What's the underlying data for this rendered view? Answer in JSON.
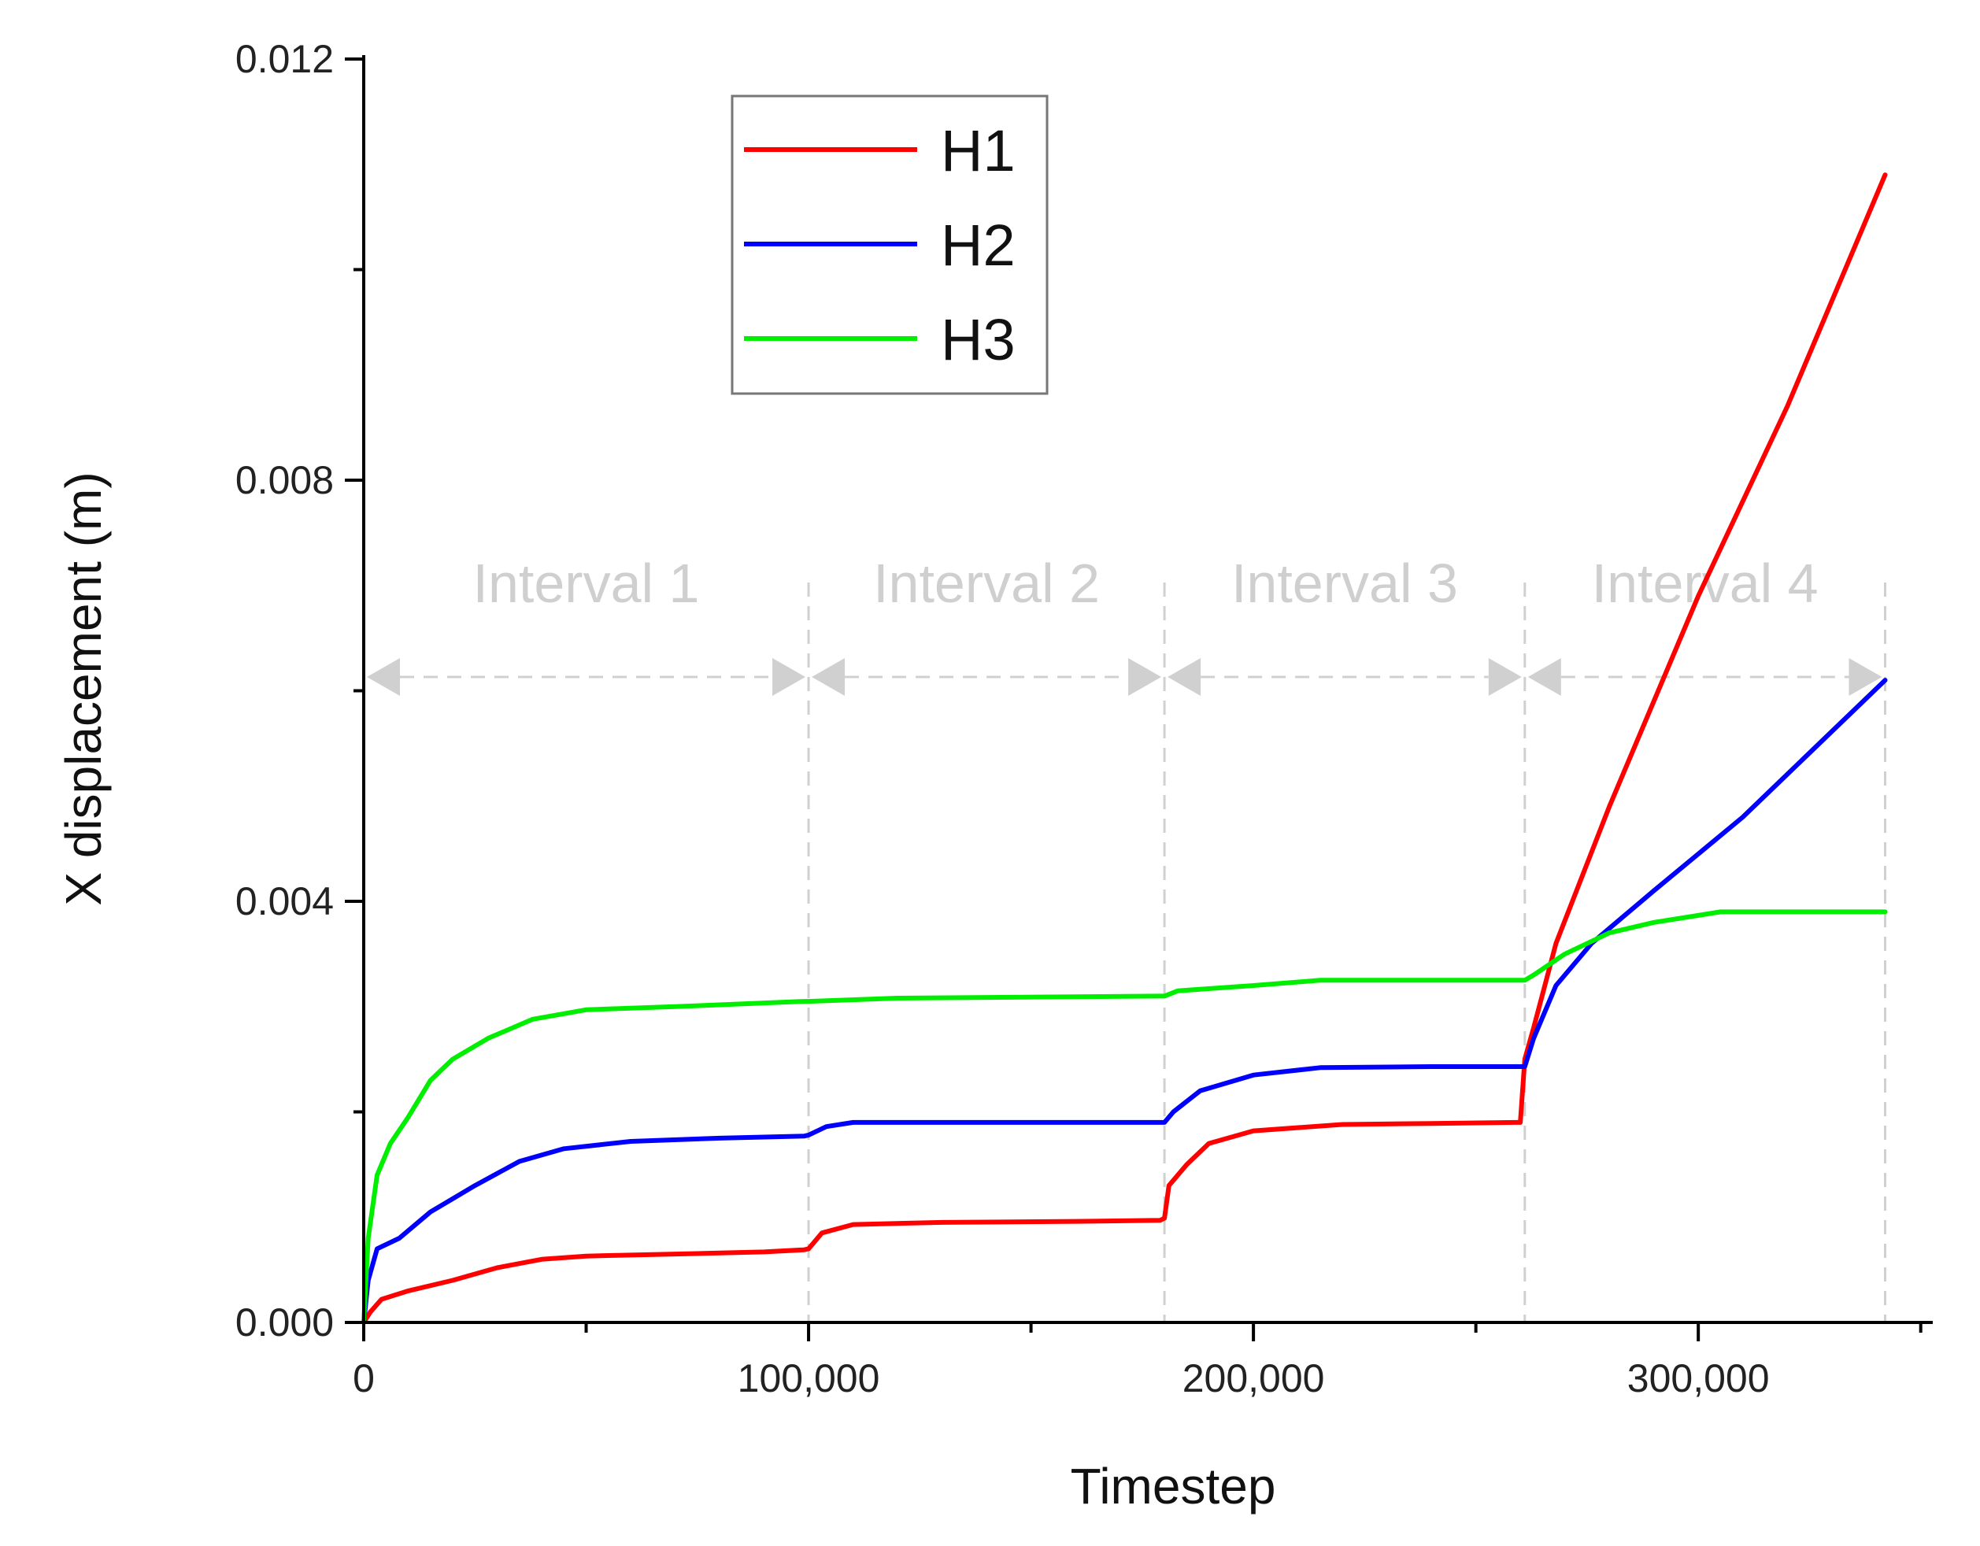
{
  "chart_data": {
    "type": "line",
    "title": "",
    "xlabel": "Timestep",
    "ylabel": "X displacement (m)",
    "xlim": [
      0,
      352000
    ],
    "ylim": [
      0,
      0.012
    ],
    "x_ticks": [
      0,
      100000,
      200000,
      300000
    ],
    "x_tick_labels": [
      "0",
      "100,000",
      "200,000",
      "300,000"
    ],
    "y_ticks": [
      0,
      0.004,
      0.008,
      0.012
    ],
    "y_tick_labels": [
      "0.000",
      "0.004",
      "0.008",
      "0.012"
    ],
    "legend": {
      "position": "top-left",
      "entries": [
        "H1",
        "H2",
        "H3"
      ]
    },
    "intervals": [
      {
        "label": "Interval  1",
        "start": 0,
        "end": 100000
      },
      {
        "label": "Interval  2",
        "start": 100000,
        "end": 180000
      },
      {
        "label": "Interval  3",
        "start": 180000,
        "end": 261000
      },
      {
        "label": "Interval  4",
        "start": 261000,
        "end": 342000
      }
    ],
    "series": [
      {
        "name": "H1",
        "color": "#ff0000",
        "points": [
          [
            0,
            0
          ],
          [
            1500,
            0.0001
          ],
          [
            4000,
            0.00022
          ],
          [
            10000,
            0.0003
          ],
          [
            20000,
            0.0004
          ],
          [
            30000,
            0.00052
          ],
          [
            40000,
            0.0006
          ],
          [
            50000,
            0.00063
          ],
          [
            70000,
            0.00065
          ],
          [
            90000,
            0.00067
          ],
          [
            99000,
            0.00069
          ],
          [
            100000,
            0.0007
          ],
          [
            103000,
            0.00085
          ],
          [
            110000,
            0.00093
          ],
          [
            130000,
            0.00095
          ],
          [
            160000,
            0.00096
          ],
          [
            179000,
            0.00097
          ],
          [
            180000,
            0.00099
          ],
          [
            181000,
            0.0013
          ],
          [
            185000,
            0.0015
          ],
          [
            190000,
            0.0017
          ],
          [
            200000,
            0.00182
          ],
          [
            220000,
            0.00188
          ],
          [
            240000,
            0.00189
          ],
          [
            259000,
            0.0019
          ],
          [
            260000,
            0.0019
          ],
          [
            261000,
            0.0025
          ],
          [
            263000,
            0.0028
          ],
          [
            268000,
            0.0036
          ],
          [
            280000,
            0.0049
          ],
          [
            300000,
            0.0069
          ],
          [
            320000,
            0.0087
          ],
          [
            342000,
            0.0109
          ]
        ]
      },
      {
        "name": "H2",
        "color": "#0000ff",
        "points": [
          [
            0,
            0
          ],
          [
            1000,
            0.0004
          ],
          [
            3000,
            0.0007
          ],
          [
            8000,
            0.0008
          ],
          [
            15000,
            0.00105
          ],
          [
            25000,
            0.0013
          ],
          [
            35000,
            0.00153
          ],
          [
            45000,
            0.00165
          ],
          [
            60000,
            0.00172
          ],
          [
            80000,
            0.00175
          ],
          [
            99000,
            0.00177
          ],
          [
            100000,
            0.00178
          ],
          [
            104000,
            0.00186
          ],
          [
            110000,
            0.0019
          ],
          [
            140000,
            0.0019
          ],
          [
            179000,
            0.0019
          ],
          [
            180000,
            0.0019
          ],
          [
            182000,
            0.002
          ],
          [
            188000,
            0.0022
          ],
          [
            200000,
            0.00235
          ],
          [
            215000,
            0.00242
          ],
          [
            240000,
            0.00243
          ],
          [
            261000,
            0.00243
          ],
          [
            263000,
            0.0027
          ],
          [
            268000,
            0.0032
          ],
          [
            276000,
            0.0036
          ],
          [
            290000,
            0.0041
          ],
          [
            310000,
            0.0048
          ],
          [
            342000,
            0.0061
          ]
        ]
      },
      {
        "name": "H3",
        "color": "#00ee00",
        "points": [
          [
            0,
            0
          ],
          [
            1000,
            0.0008
          ],
          [
            3000,
            0.0014
          ],
          [
            6000,
            0.0017
          ],
          [
            10000,
            0.00195
          ],
          [
            15000,
            0.0023
          ],
          [
            20000,
            0.0025
          ],
          [
            28000,
            0.0027
          ],
          [
            38000,
            0.00288
          ],
          [
            50000,
            0.00297
          ],
          [
            70000,
            0.003
          ],
          [
            99000,
            0.00305
          ],
          [
            100000,
            0.00305
          ],
          [
            120000,
            0.00308
          ],
          [
            179000,
            0.0031
          ],
          [
            180000,
            0.0031
          ],
          [
            183000,
            0.00315
          ],
          [
            200000,
            0.0032
          ],
          [
            215000,
            0.00325
          ],
          [
            261000,
            0.00325
          ],
          [
            263000,
            0.0033
          ],
          [
            270000,
            0.0035
          ],
          [
            280000,
            0.0037
          ],
          [
            290000,
            0.0038
          ],
          [
            305000,
            0.0039
          ],
          [
            342000,
            0.0039
          ]
        ]
      }
    ]
  }
}
